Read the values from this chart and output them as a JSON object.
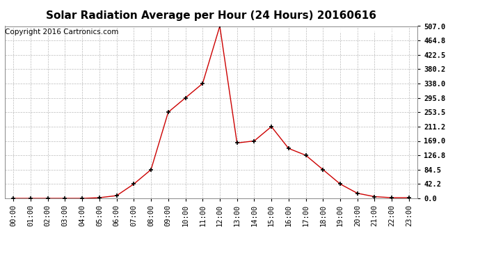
{
  "title": "Solar Radiation Average per Hour (24 Hours) 20160616",
  "copyright_text": "Copyright 2016 Cartronics.com",
  "hours": [
    0,
    1,
    2,
    3,
    4,
    5,
    6,
    7,
    8,
    9,
    10,
    11,
    12,
    13,
    14,
    15,
    16,
    17,
    18,
    19,
    20,
    21,
    22,
    23
  ],
  "values": [
    0.0,
    0.0,
    0.0,
    0.0,
    0.0,
    2.0,
    8.0,
    42.2,
    84.5,
    253.5,
    295.8,
    338.0,
    507.0,
    163.0,
    169.0,
    211.2,
    147.0,
    126.8,
    84.5,
    42.2,
    15.0,
    5.0,
    2.0,
    2.0
  ],
  "ylim": [
    0.0,
    507.0
  ],
  "yticks": [
    0.0,
    42.2,
    84.5,
    126.8,
    169.0,
    211.2,
    253.5,
    295.8,
    338.0,
    380.2,
    422.5,
    464.8,
    507.0
  ],
  "line_color": "#cc0000",
  "marker_color": "#000000",
  "background_color": "#ffffff",
  "grid_color": "#bbbbbb",
  "legend_bg": "#cc0000",
  "legend_text_color": "#ffffff",
  "title_fontsize": 11,
  "tick_fontsize": 7.5,
  "copyright_fontsize": 7.5
}
